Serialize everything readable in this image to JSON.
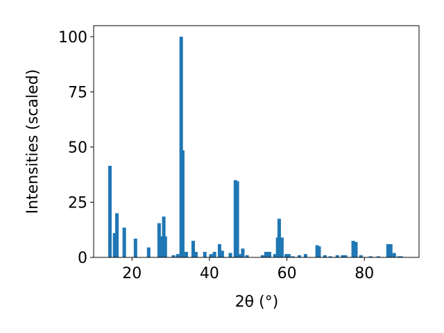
{
  "chart_data": {
    "type": "bar",
    "x_label": "2θ (°)",
    "y_label": "Intensities (scaled)",
    "x": [
      14.3,
      15.5,
      16.1,
      18.0,
      20.9,
      24.3,
      27.0,
      27.5,
      28.2,
      28.6,
      30.7,
      31.8,
      32.7,
      33.1,
      34.0,
      35.8,
      36.5,
      38.8,
      40.4,
      41.3,
      42.6,
      43.3,
      45.4,
      46.7,
      47.2,
      47.9,
      48.6,
      49.7,
      53.7,
      54.6,
      55.5,
      56.9,
      57.6,
      58.0,
      58.7,
      59.8,
      60.5,
      61.5,
      63.2,
      64.8,
      67.8,
      68.3,
      69.8,
      71.2,
      73.0,
      74.4,
      75.1,
      77.1,
      77.8,
      79.1,
      81.6,
      83.6,
      86.1,
      86.8,
      87.7,
      88.9,
      89.5
    ],
    "values": [
      41.5,
      11,
      20,
      13.5,
      8.5,
      4.5,
      15.5,
      9.5,
      18.5,
      9.5,
      1,
      1.5,
      100,
      48.5,
      2.5,
      7.5,
      2.5,
      2.5,
      1.5,
      2.5,
      6,
      3,
      2,
      35,
      34.5,
      1.5,
      4,
      1,
      1,
      2.5,
      2.5,
      1.5,
      9,
      17.5,
      9,
      1.5,
      1.5,
      0.5,
      1,
      1.5,
      5.5,
      5,
      1,
      0.5,
      1,
      1,
      1,
      7.5,
      7,
      1,
      0.5,
      0.5,
      6,
      6,
      2,
      0.5,
      0.5
    ],
    "color": "#1f77b4",
    "xlim": [
      10.1,
      94.1
    ],
    "xticks": [
      20,
      40,
      60,
      80
    ],
    "ylim": [
      0,
      105
    ],
    "yticks": [
      0,
      25,
      50,
      75,
      100
    ],
    "grid": false
  }
}
